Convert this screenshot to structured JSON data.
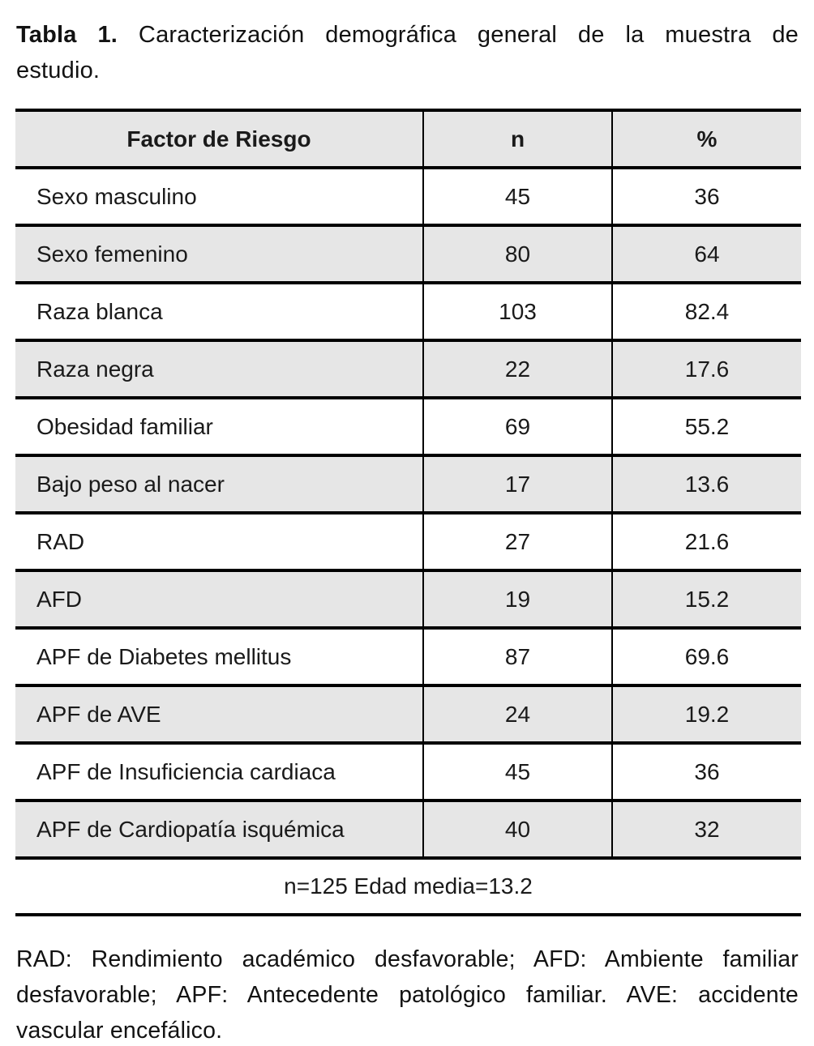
{
  "title": {
    "label": "Tabla 1.",
    "line1": "Caracterización demográfica general de la muestra de",
    "line2": "estudio."
  },
  "table": {
    "columns": [
      "Factor de Riesgo",
      "n",
      "%"
    ],
    "rows": [
      {
        "factor": "Sexo masculino",
        "n": "45",
        "pct": "36"
      },
      {
        "factor": "Sexo femenino",
        "n": "80",
        "pct": "64"
      },
      {
        "factor": "Raza blanca",
        "n": "103",
        "pct": "82.4"
      },
      {
        "factor": "Raza negra",
        "n": "22",
        "pct": "17.6"
      },
      {
        "factor": "Obesidad familiar",
        "n": "69",
        "pct": "55.2"
      },
      {
        "factor": "Bajo peso al nacer",
        "n": "17",
        "pct": "13.6"
      },
      {
        "factor": "RAD",
        "n": "27",
        "pct": "21.6"
      },
      {
        "factor": "AFD",
        "n": "19",
        "pct": "15.2"
      },
      {
        "factor": "APF de Diabetes mellitus",
        "n": "87",
        "pct": "69.6"
      },
      {
        "factor": "APF de AVE",
        "n": "24",
        "pct": "19.2"
      },
      {
        "factor": "APF de Insuficiencia cardiaca",
        "n": "45",
        "pct": "36"
      },
      {
        "factor": "APF de Cardiopatía isquémica",
        "n": "40",
        "pct": "32"
      }
    ],
    "summary": "n=125 Edad media=13.2"
  },
  "footnote": {
    "lines": [
      "RAD: Rendimiento académico desfavorable; AFD: Ambiente familiar",
      "desfavorable; APF: Antecedente patológico familiar. AVE: accidente",
      "vascular encefálico."
    ]
  },
  "colors": {
    "header_bg": "#e6e6e6",
    "alt_row_bg": "#e6e6e6",
    "border": "#000000",
    "text": "#121212"
  }
}
